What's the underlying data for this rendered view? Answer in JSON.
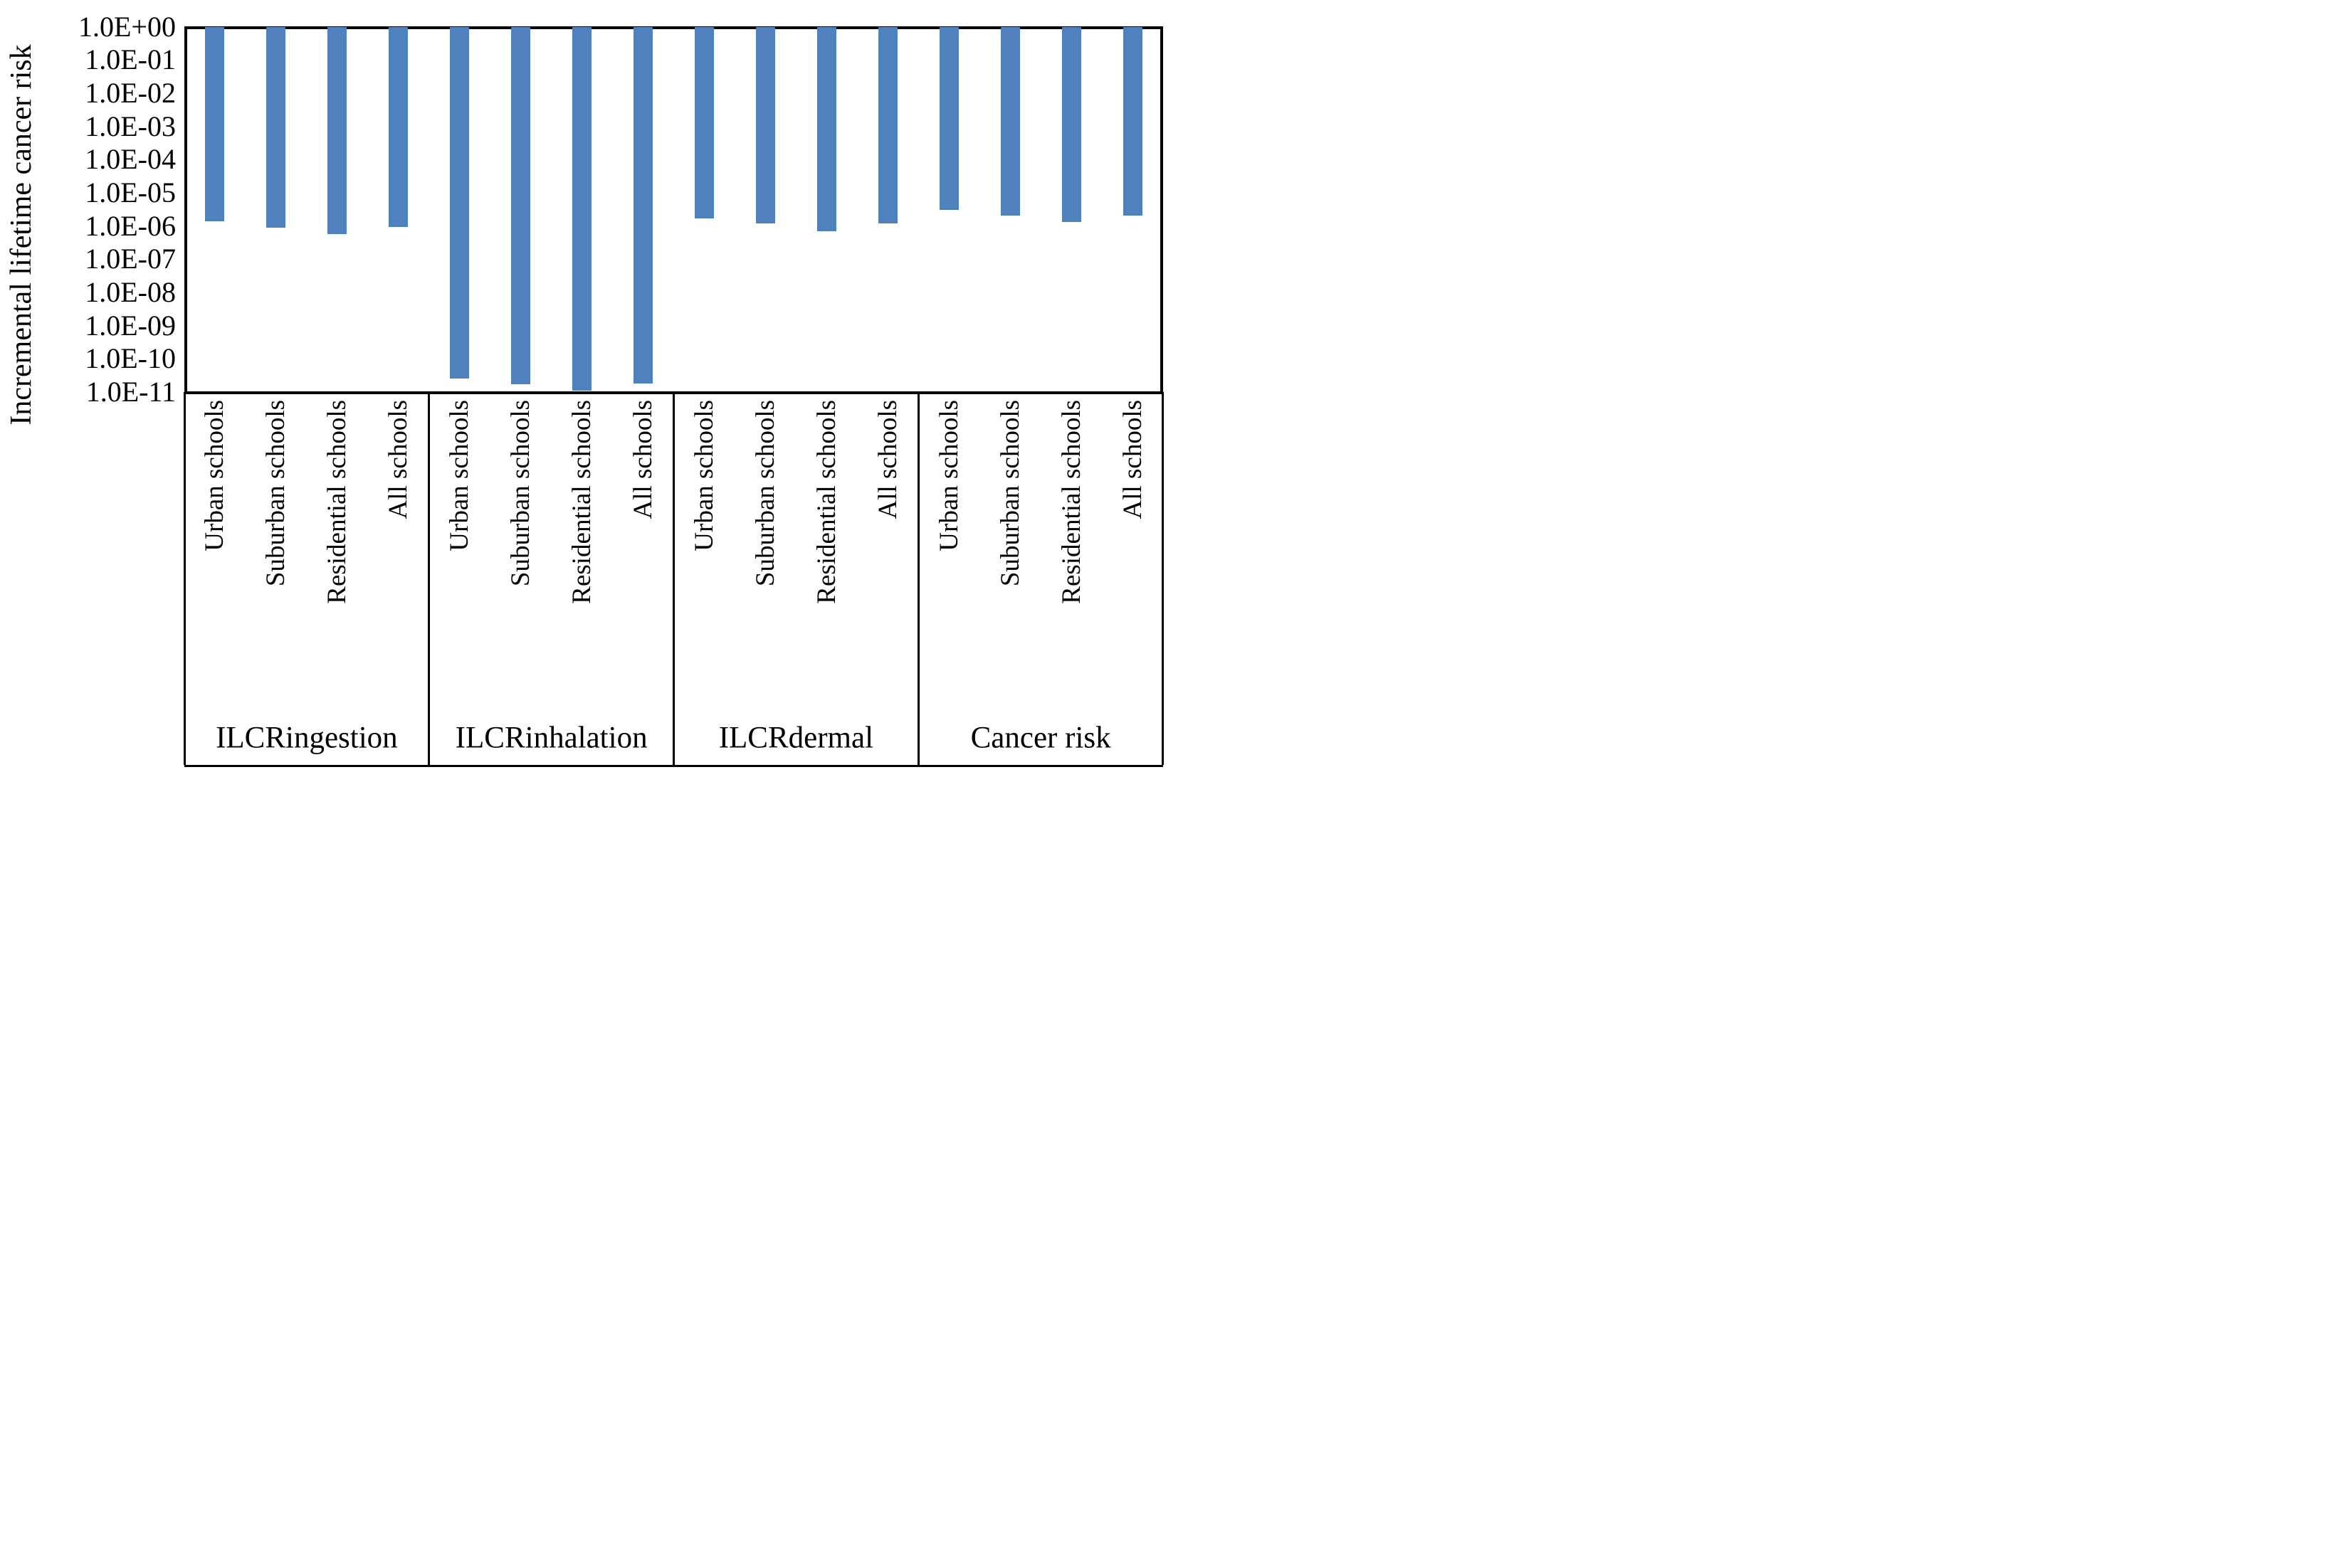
{
  "figure": {
    "background": "#FFFFFF",
    "line_color": "#000000"
  },
  "chart_data": {
    "type": "bar",
    "title": "",
    "xlabel": "",
    "ylabel": "Incremental lifetime cancer risk",
    "scale": "log",
    "ylim": [
      1e-11,
      1.0
    ],
    "grid": false,
    "legend": "none",
    "bar_color": "#4F81BD",
    "bars_hang_from": 1.0,
    "y_ticks": [
      "1.0E+00",
      "1.0E-01",
      "1.0E-02",
      "1.0E-03",
      "1.0E-04",
      "1.0E-05",
      "1.0E-06",
      "1.0E-07",
      "1.0E-08",
      "1.0E-09",
      "1.0E-10",
      "1.0E-11"
    ],
    "categories": [
      "Urban schools",
      "Suburban schools",
      "Residential schools",
      "All schools"
    ],
    "groups": [
      {
        "label": "ILCRingestion",
        "values": [
          1.4e-06,
          9.1e-07,
          5.6e-07,
          9.4e-07
        ]
      },
      {
        "label": "ILCRinhalation",
        "values": [
          2.6e-11,
          1.7e-11,
          1.1e-11,
          1.8e-11
        ]
      },
      {
        "label": "ILCRdermal",
        "values": [
          1.7e-06,
          1.2e-06,
          7.1e-07,
          1.2e-06
        ]
      },
      {
        "label": "Cancer risk",
        "values": [
          3e-06,
          2.1e-06,
          1.3e-06,
          2.1e-06
        ]
      }
    ]
  }
}
